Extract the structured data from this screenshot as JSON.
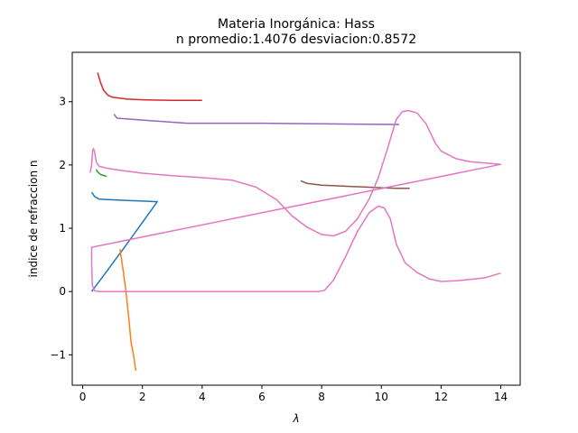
{
  "chart_data": {
    "type": "line",
    "title_line1": "Materia Inorgánica: Hass",
    "title_line2": "n promedio:1.4076 desviacion:0.8572",
    "xlabel": "λ",
    "ylabel": "indice de refraccion n",
    "xlim": [
      -0.35,
      14.65
    ],
    "ylim": [
      -1.48,
      3.78
    ],
    "x_ticks": [
      0,
      2,
      4,
      6,
      8,
      10,
      12,
      14
    ],
    "y_ticks": [
      -1,
      0,
      1,
      2,
      3
    ],
    "x_tick_labels": [
      "0",
      "2",
      "4",
      "6",
      "8",
      "10",
      "12",
      "14"
    ],
    "y_tick_labels": [
      "−1",
      "0",
      "1",
      "2",
      "3"
    ],
    "grid": false,
    "legend": "none",
    "series": [
      {
        "color": "#1f77b4",
        "points": [
          [
            0.3,
            1.57
          ],
          [
            0.4,
            1.5
          ],
          [
            0.55,
            1.46
          ],
          [
            1.0,
            1.45
          ],
          [
            1.5,
            1.44
          ],
          [
            2.0,
            1.43
          ],
          [
            2.5,
            1.42
          ],
          [
            1.4,
            0.7
          ],
          [
            0.3,
            0.0
          ]
        ]
      },
      {
        "color": "#ff7f0e",
        "points": [
          [
            1.25,
            0.67
          ],
          [
            1.35,
            0.35
          ],
          [
            1.45,
            0.0
          ],
          [
            1.55,
            -0.45
          ],
          [
            1.62,
            -0.8
          ],
          [
            1.7,
            -1.0
          ],
          [
            1.78,
            -1.25
          ]
        ]
      },
      {
        "color": "#2ca02c",
        "points": [
          [
            0.45,
            1.93
          ],
          [
            0.5,
            1.89
          ],
          [
            0.6,
            1.85
          ],
          [
            0.8,
            1.82
          ]
        ]
      },
      {
        "color": "#d62728",
        "points": [
          [
            0.5,
            3.46
          ],
          [
            0.6,
            3.3
          ],
          [
            0.7,
            3.18
          ],
          [
            0.85,
            3.1
          ],
          [
            1.0,
            3.07
          ],
          [
            1.5,
            3.04
          ],
          [
            2.0,
            3.03
          ],
          [
            3.0,
            3.02
          ],
          [
            4.0,
            3.02
          ]
        ]
      },
      {
        "color": "#9467bd",
        "points": [
          [
            1.05,
            2.8
          ],
          [
            1.15,
            2.74
          ],
          [
            2.0,
            2.71
          ],
          [
            3.5,
            2.66
          ],
          [
            6.0,
            2.66
          ],
          [
            8.0,
            2.65
          ],
          [
            10.6,
            2.64
          ]
        ]
      },
      {
        "color": "#8c564b",
        "points": [
          [
            7.3,
            1.75
          ],
          [
            7.5,
            1.71
          ],
          [
            8.0,
            1.68
          ],
          [
            8.5,
            1.67
          ],
          [
            9.0,
            1.66
          ],
          [
            9.5,
            1.65
          ],
          [
            10.0,
            1.64
          ],
          [
            10.5,
            1.63
          ],
          [
            10.95,
            1.63
          ]
        ]
      },
      {
        "color": "#e377c2",
        "points": [
          [
            0.25,
            1.88
          ],
          [
            0.3,
            2.0
          ],
          [
            0.33,
            2.22
          ],
          [
            0.36,
            2.26
          ],
          [
            0.4,
            2.2
          ],
          [
            0.45,
            2.05
          ],
          [
            0.55,
            1.98
          ],
          [
            0.8,
            1.95
          ],
          [
            1.2,
            1.92
          ],
          [
            2.0,
            1.87
          ],
          [
            3.0,
            1.83
          ],
          [
            4.0,
            1.8
          ],
          [
            5.0,
            1.76
          ],
          [
            5.8,
            1.65
          ],
          [
            6.5,
            1.45
          ],
          [
            7.0,
            1.2
          ],
          [
            7.5,
            1.02
          ],
          [
            8.0,
            0.9
          ],
          [
            8.4,
            0.88
          ],
          [
            8.8,
            0.95
          ],
          [
            9.2,
            1.15
          ],
          [
            9.6,
            1.47
          ],
          [
            9.9,
            1.8
          ],
          [
            10.2,
            2.25
          ],
          [
            10.5,
            2.72
          ],
          [
            10.7,
            2.84
          ],
          [
            10.9,
            2.86
          ],
          [
            11.2,
            2.82
          ],
          [
            11.5,
            2.65
          ],
          [
            11.8,
            2.35
          ],
          [
            12.0,
            2.22
          ],
          [
            12.5,
            2.1
          ],
          [
            13.0,
            2.05
          ],
          [
            13.5,
            2.03
          ],
          [
            14.0,
            2.01
          ],
          [
            0.3,
            0.7
          ],
          [
            0.3,
            0.45
          ],
          [
            0.32,
            0.1
          ],
          [
            0.4,
            0.01
          ],
          [
            0.6,
            0.0
          ],
          [
            2.5,
            0.0
          ],
          [
            5.0,
            0.0
          ],
          [
            7.0,
            0.0
          ],
          [
            7.9,
            0.0
          ],
          [
            8.1,
            0.02
          ],
          [
            8.4,
            0.18
          ],
          [
            8.8,
            0.55
          ],
          [
            9.2,
            0.95
          ],
          [
            9.6,
            1.25
          ],
          [
            9.9,
            1.35
          ],
          [
            10.1,
            1.32
          ],
          [
            10.3,
            1.15
          ],
          [
            10.5,
            0.75
          ],
          [
            10.8,
            0.45
          ],
          [
            11.2,
            0.3
          ],
          [
            11.6,
            0.2
          ],
          [
            12.0,
            0.16
          ],
          [
            12.5,
            0.17
          ],
          [
            13.0,
            0.19
          ],
          [
            13.5,
            0.22
          ],
          [
            14.0,
            0.29
          ]
        ]
      }
    ]
  }
}
